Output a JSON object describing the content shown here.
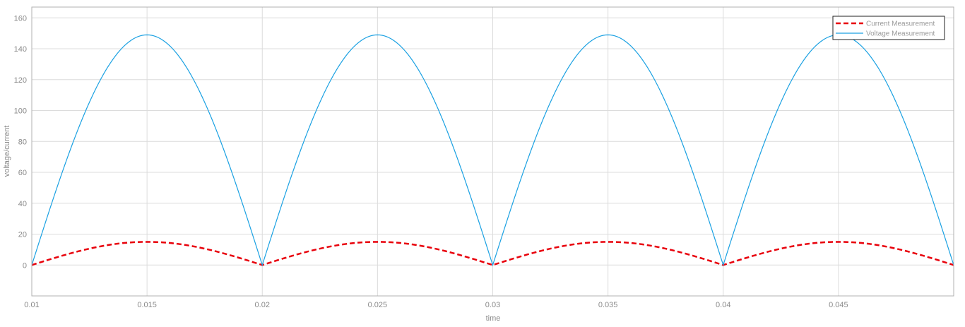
{
  "chart_data": {
    "type": "line",
    "title": "",
    "xlabel": "time",
    "ylabel": "voltage/current",
    "xlim": [
      0.01,
      0.05
    ],
    "ylim": [
      -20,
      167
    ],
    "grid": true,
    "legend_position": "top-right",
    "x_ticks": [
      "0.01",
      "0.015",
      "0.02",
      "0.025",
      "0.03",
      "0.035",
      "0.04",
      "0.045"
    ],
    "y_ticks": [
      "0",
      "20",
      "40",
      "60",
      "80",
      "100",
      "120",
      "140",
      "160"
    ],
    "series": [
      {
        "name": "Current Measurement",
        "color": "#e8000b",
        "style": "dashed",
        "x": [
          0.01,
          0.01125,
          0.0125,
          0.01375,
          0.015,
          0.01625,
          0.0175,
          0.01875,
          0.02,
          0.02125,
          0.0225,
          0.02375,
          0.025,
          0.02625,
          0.0275,
          0.02875,
          0.03,
          0.03125,
          0.0325,
          0.03375,
          0.035,
          0.03625,
          0.0375,
          0.03875,
          0.04,
          0.04125,
          0.0425,
          0.04375,
          0.045,
          0.04625,
          0.0475,
          0.04875,
          0.05
        ],
        "y": [
          0,
          5.7,
          10.6,
          13.9,
          15,
          13.9,
          10.6,
          5.7,
          0,
          5.7,
          10.6,
          13.9,
          15,
          13.9,
          10.6,
          5.7,
          0,
          5.7,
          10.6,
          13.9,
          15,
          13.9,
          10.6,
          5.7,
          0,
          5.7,
          10.6,
          13.9,
          15,
          13.9,
          10.6,
          5.7,
          0
        ]
      },
      {
        "name": "Voltage Measurement",
        "color": "#1ba1e2",
        "style": "solid",
        "x": [
          0.01,
          0.01125,
          0.0125,
          0.01375,
          0.015,
          0.01625,
          0.0175,
          0.01875,
          0.02,
          0.02125,
          0.0225,
          0.02375,
          0.025,
          0.02625,
          0.0275,
          0.02875,
          0.03,
          0.03125,
          0.0325,
          0.03375,
          0.035,
          0.03625,
          0.0375,
          0.03875,
          0.04,
          0.04125,
          0.0425,
          0.04375,
          0.045,
          0.04625,
          0.0475,
          0.04875,
          0.05
        ],
        "y": [
          0,
          57,
          105.4,
          137.7,
          149,
          137.7,
          105.4,
          57,
          0,
          57,
          105.4,
          137.7,
          149,
          137.7,
          105.4,
          57,
          0,
          57,
          105.4,
          137.7,
          149,
          137.7,
          105.4,
          57,
          0,
          57,
          105.4,
          137.7,
          149,
          137.7,
          105.4,
          57,
          0
        ]
      }
    ]
  }
}
